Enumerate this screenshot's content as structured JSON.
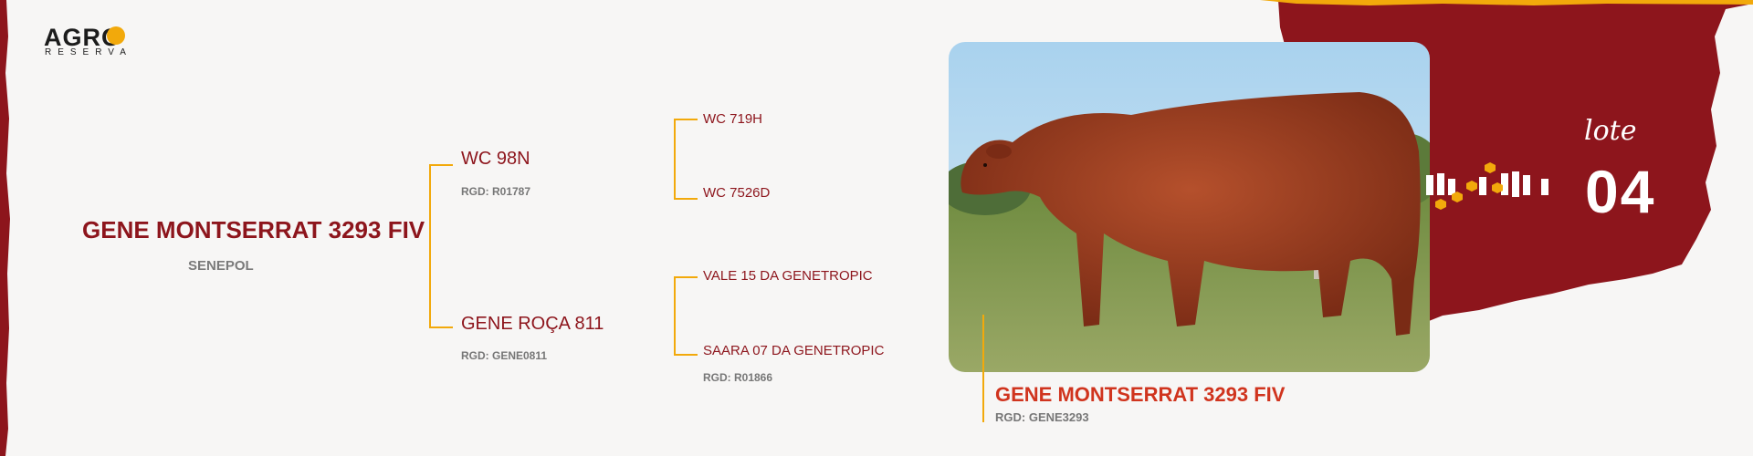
{
  "brand": {
    "logo_main": "AGRO",
    "logo_sub": "RESERVA"
  },
  "animal": {
    "name": "GENE MONTSERRAT 3293 FIV",
    "breed": "SENEPOL"
  },
  "pedigree": {
    "sire": {
      "name": "WC 98N",
      "rgd": "RGD: R01787"
    },
    "dam": {
      "name": "GENE ROÇA 811",
      "rgd": "RGD: GENE0811"
    },
    "sire_sire": {
      "name": "WC 719H"
    },
    "sire_dam": {
      "name": "WC 7526D"
    },
    "dam_sire": {
      "name": "VALE 15 DA GENETROPIC"
    },
    "dam_dam": {
      "name": "SAARA 07 DA GENETROPIC",
      "rgd": "RGD: R01866"
    }
  },
  "photo_caption": {
    "name": "GENE MONTSERRAT 3293 FIV",
    "rgd": "RGD: GENE3293"
  },
  "lot": {
    "label": "lote",
    "number": "04"
  },
  "colors": {
    "brand_red": "#8d151c",
    "accent_yellow": "#f2a90b",
    "caption_red": "#d0341e"
  }
}
